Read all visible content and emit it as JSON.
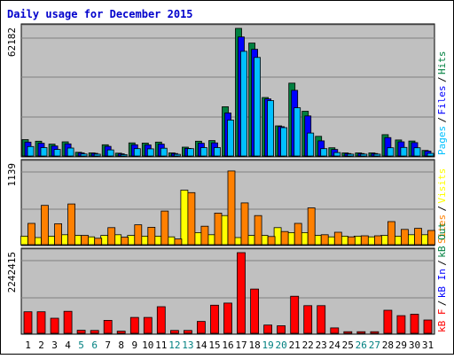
{
  "chart_data": {
    "type": "bar",
    "title": "Daily usage for December 2015",
    "categories": [
      "1",
      "2",
      "3",
      "4",
      "5",
      "6",
      "7",
      "8",
      "9",
      "10",
      "11",
      "12",
      "13",
      "14",
      "15",
      "16",
      "17",
      "18",
      "19",
      "20",
      "21",
      "22",
      "23",
      "24",
      "25",
      "26",
      "27",
      "28",
      "29",
      "30",
      "31"
    ],
    "weekend_days": [
      "5",
      "6",
      "12",
      "13",
      "19",
      "20",
      "26",
      "27"
    ],
    "panels": [
      {
        "name": "top",
        "max_label": "62182",
        "ymax": 62182,
        "legend": [
          {
            "label": "Pages",
            "color": "#00C0FF"
          },
          {
            "label": "Files",
            "color": "#0000FF"
          },
          {
            "label": "Hits",
            "color": "#008040"
          }
        ],
        "series": [
          {
            "name": "Hits",
            "color": "#008040",
            "values": [
              8000,
              7200,
              5800,
              6900,
              1800,
              1500,
              5500,
              1400,
              6400,
              6300,
              6800,
              1500,
              4300,
              7200,
              7500,
              24000,
              62182,
              55000,
              28500,
              14700,
              35500,
              21800,
              9600,
              4000,
              1500,
              1500,
              1500,
              10400,
              7800,
              7300,
              2700
            ]
          },
          {
            "name": "Files",
            "color": "#0000FF",
            "values": [
              6800,
              6200,
              4900,
              5900,
              1500,
              1300,
              4700,
              1100,
              5500,
              5400,
              5800,
              1200,
              3700,
              6200,
              6400,
              21000,
              58000,
              52000,
              27800,
              14300,
              32000,
              19500,
              7400,
              3200,
              1200,
              1200,
              1200,
              9000,
              6900,
              6500,
              2400
            ]
          },
          {
            "name": "Pages",
            "color": "#00C0FF",
            "values": [
              4600,
              4100,
              3200,
              3900,
              1000,
              900,
              3000,
              700,
              3600,
              3500,
              3800,
              800,
              3600,
              4100,
              4100,
              17500,
              51000,
              48000,
              27000,
              13800,
              23500,
              11200,
              3600,
              1700,
              900,
              900,
              900,
              4000,
              4200,
              4000,
              1300
            ]
          }
        ]
      },
      {
        "name": "middle",
        "max_label": "1139",
        "ymax": 1139,
        "legend": [
          {
            "label": "Sites",
            "color": "#FF8000"
          },
          {
            "label": "Visits",
            "color": "#FFFF00"
          }
        ],
        "series": [
          {
            "name": "Visits",
            "color": "#FFFF00",
            "values": [
              120,
              100,
              120,
              140,
              130,
              110,
              130,
              140,
              130,
              120,
              120,
              110,
              770,
              170,
              140,
              410,
              100,
              130,
              130,
              240,
              170,
              170,
              130,
              110,
              120,
              120,
              110,
              130,
              120,
              140,
              140
            ]
          },
          {
            "name": "Sites",
            "color": "#FF8000",
            "values": [
              300,
              555,
              295,
              575,
              130,
              90,
              240,
              105,
              280,
              245,
              475,
              80,
              735,
              260,
              445,
              1040,
              590,
              410,
              115,
              185,
              300,
              520,
              140,
              175,
              110,
              125,
              125,
              325,
              215,
              230,
              200
            ]
          }
        ]
      },
      {
        "name": "bottom",
        "max_label": "2242415",
        "ymax": 2242415,
        "legend": [
          {
            "label": "kB F",
            "color": "#FF0000"
          },
          {
            "label": "kB In",
            "color": "#0000FF"
          },
          {
            "label": "kB Out",
            "color": "#008040"
          }
        ],
        "series": [
          {
            "name": "kB F",
            "color": "#FF0000",
            "values": [
              600000,
              600000,
              420000,
              610000,
              85000,
              80000,
              360000,
              60000,
              440000,
              440000,
              740000,
              80000,
              80000,
              330000,
              780000,
              840000,
              2242415,
              1230000,
              230000,
              210000,
              1030000,
              770000,
              770000,
              150000,
              45000,
              45000,
              45000,
              640000,
              490000,
              530000,
              370000
            ]
          }
        ]
      }
    ]
  }
}
